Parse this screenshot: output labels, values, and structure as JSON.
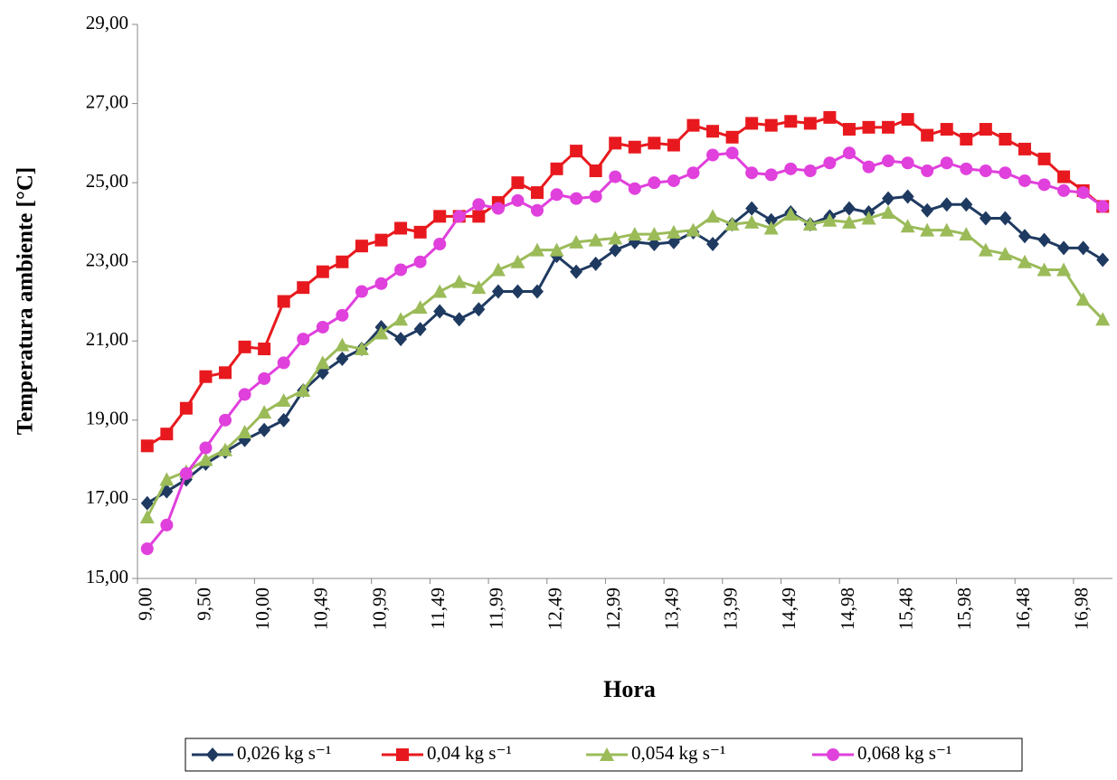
{
  "chart_data": {
    "type": "line",
    "x_label": "Hora",
    "y_label": "Temperatura ambiente [°C]",
    "categories": [
      "9,00",
      null,
      null,
      "9,50",
      null,
      null,
      "10,00",
      null,
      null,
      "10,49",
      null,
      null,
      "10,99",
      null,
      null,
      "11,49",
      null,
      null,
      "11,99",
      null,
      null,
      "12,49",
      null,
      null,
      "12,99",
      null,
      null,
      "13,49",
      null,
      null,
      "13,99",
      null,
      null,
      "14,49",
      null,
      null,
      "14,98",
      null,
      null,
      "15,48",
      null,
      null,
      "15,98",
      null,
      null,
      "16,48",
      null,
      null,
      "16,98",
      null
    ],
    "ylim": [
      15,
      29
    ],
    "yticks": [
      {
        "value": 15,
        "label": "15,00"
      },
      {
        "value": 17,
        "label": "17,00"
      },
      {
        "value": 19,
        "label": "19,00"
      },
      {
        "value": 21,
        "label": "21,00"
      },
      {
        "value": 23,
        "label": "23,00"
      },
      {
        "value": 25,
        "label": "25,00"
      },
      {
        "value": 27,
        "label": "27,00"
      },
      {
        "value": 29,
        "label": "29,00"
      }
    ],
    "grid": false,
    "legend": "bottom",
    "series": [
      {
        "name": "0,026 kg s⁻¹",
        "color": "#1f3a60",
        "marker": "diamond",
        "values": [
          16.9,
          17.2,
          17.5,
          17.9,
          18.2,
          18.5,
          18.75,
          19.0,
          19.75,
          20.2,
          20.55,
          20.8,
          21.35,
          21.05,
          21.3,
          21.75,
          21.55,
          21.8,
          22.25,
          22.25,
          22.25,
          23.15,
          22.75,
          22.95,
          23.3,
          23.5,
          23.45,
          23.5,
          23.75,
          23.45,
          23.95,
          24.35,
          24.05,
          24.25,
          23.95,
          24.15,
          24.35,
          24.25,
          24.6,
          24.65,
          24.3,
          24.45,
          24.45,
          24.1,
          24.1,
          23.65,
          23.55,
          23.35,
          23.35,
          23.05
        ]
      },
      {
        "name": "0,04 kg s⁻¹",
        "color": "#e8191e",
        "marker": "square",
        "values": [
          18.35,
          18.65,
          19.3,
          20.1,
          20.2,
          20.85,
          20.8,
          22.0,
          22.35,
          22.75,
          23.0,
          23.4,
          23.55,
          23.85,
          23.75,
          24.15,
          24.15,
          24.15,
          24.5,
          25.0,
          24.75,
          25.35,
          25.8,
          25.3,
          26.0,
          25.9,
          26.0,
          25.95,
          26.45,
          26.3,
          26.15,
          26.5,
          26.45,
          26.55,
          26.5,
          26.65,
          26.35,
          26.4,
          26.4,
          26.6,
          26.2,
          26.35,
          26.1,
          26.35,
          26.1,
          25.85,
          25.6,
          25.15,
          24.8,
          24.4
        ]
      },
      {
        "name": "0,054 kg s⁻¹",
        "color": "#9bbb59",
        "marker": "triangle",
        "values": [
          16.55,
          17.5,
          17.7,
          18.0,
          18.25,
          18.7,
          19.2,
          19.5,
          19.75,
          20.45,
          20.9,
          20.8,
          21.2,
          21.55,
          21.85,
          22.25,
          22.5,
          22.35,
          22.8,
          23.0,
          23.3,
          23.3,
          23.5,
          23.55,
          23.6,
          23.7,
          23.7,
          23.75,
          23.8,
          24.15,
          23.95,
          24.0,
          23.85,
          24.2,
          23.95,
          24.05,
          24.0,
          24.1,
          24.25,
          23.9,
          23.8,
          23.8,
          23.7,
          23.3,
          23.2,
          23.0,
          22.8,
          22.8,
          22.05,
          21.55
        ]
      },
      {
        "name": "0,068 kg s⁻¹",
        "color": "#e040dc",
        "marker": "circle",
        "values": [
          15.75,
          16.35,
          17.65,
          18.3,
          19.0,
          19.65,
          20.05,
          20.45,
          21.05,
          21.35,
          21.65,
          22.25,
          22.45,
          22.8,
          23.0,
          23.45,
          24.15,
          24.45,
          24.35,
          24.55,
          24.3,
          24.7,
          24.6,
          24.65,
          25.15,
          24.85,
          25.0,
          25.05,
          25.25,
          25.7,
          25.75,
          25.25,
          25.2,
          25.35,
          25.3,
          25.5,
          25.75,
          25.4,
          25.55,
          25.5,
          25.3,
          25.5,
          25.35,
          25.3,
          25.25,
          25.05,
          24.95,
          24.8,
          24.75,
          24.4
        ]
      }
    ]
  }
}
